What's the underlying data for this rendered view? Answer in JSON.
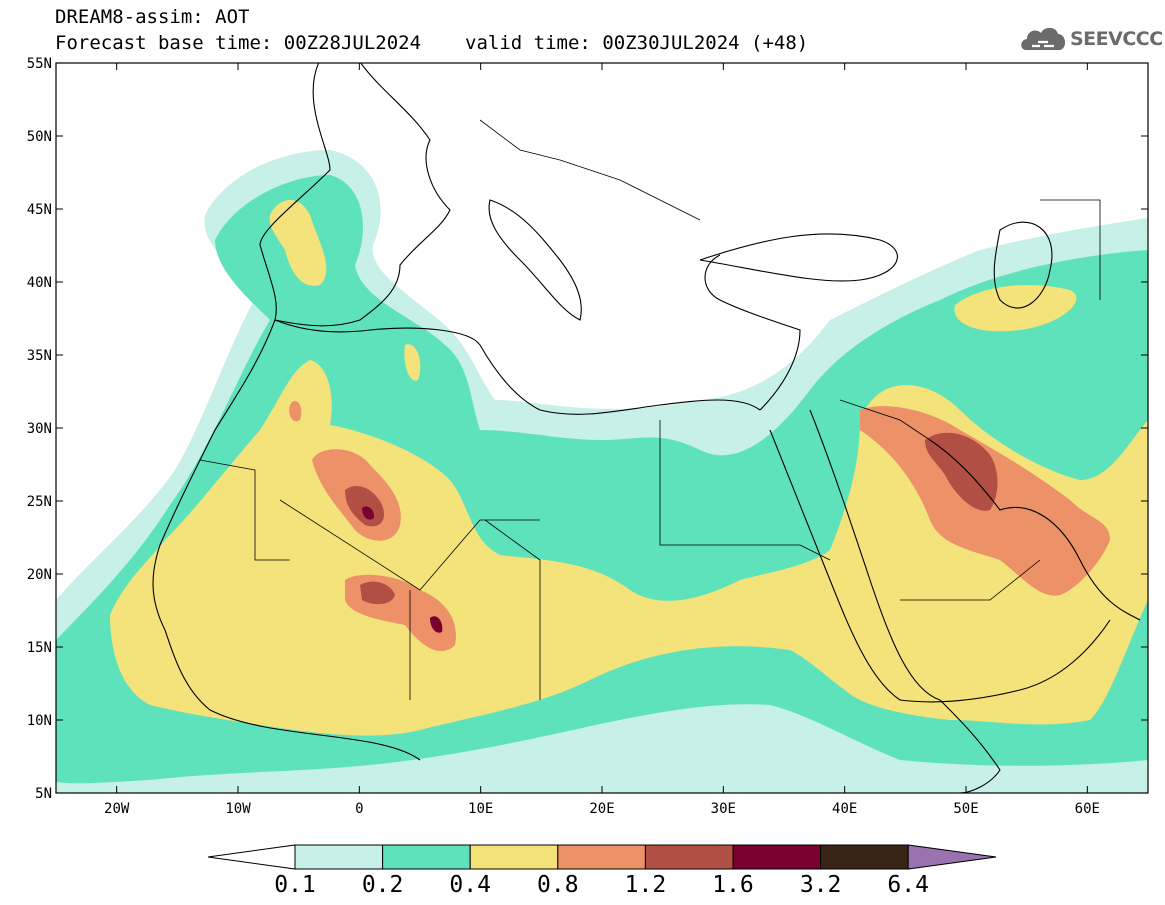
{
  "header": {
    "line1": "DREAM8-assim: AOT",
    "base_time": "Forecast base time: 00Z28JUL2024",
    "valid_time": "valid time: 00Z30JUL2024 (+48)"
  },
  "logo": {
    "text": "SEEVCCC",
    "icon": "cloud-icon",
    "color": "#6b6b6b"
  },
  "map": {
    "lon_range": [
      -25,
      65
    ],
    "lat_range": [
      5,
      55
    ],
    "lat_ticks": [
      {
        "value": 55,
        "label": "55N"
      },
      {
        "value": 50,
        "label": "50N"
      },
      {
        "value": 45,
        "label": "45N"
      },
      {
        "value": 40,
        "label": "40N"
      },
      {
        "value": 35,
        "label": "35N"
      },
      {
        "value": 30,
        "label": "30N"
      },
      {
        "value": 25,
        "label": "25N"
      },
      {
        "value": 20,
        "label": "20N"
      },
      {
        "value": 15,
        "label": "15N"
      },
      {
        "value": 10,
        "label": "10N"
      },
      {
        "value": 5,
        "label": "5N"
      }
    ],
    "lon_ticks": [
      {
        "value": -20,
        "label": "20W"
      },
      {
        "value": -10,
        "label": "10W"
      },
      {
        "value": 0,
        "label": "0"
      },
      {
        "value": 10,
        "label": "10E"
      },
      {
        "value": 20,
        "label": "20E"
      },
      {
        "value": 30,
        "label": "30E"
      },
      {
        "value": 40,
        "label": "40E"
      },
      {
        "value": 50,
        "label": "50E"
      },
      {
        "value": 60,
        "label": "60E"
      }
    ]
  },
  "colorbar": {
    "thresholds": [
      "0.1",
      "0.2",
      "0.4",
      "0.8",
      "1.2",
      "1.6",
      "3.2",
      "6.4"
    ],
    "colors": [
      "#c6f0e8",
      "#5de2bb",
      "#f4e27a",
      "#ec9168",
      "#b24f44",
      "#7a0030",
      "#3a2416",
      "#9b72b0"
    ],
    "under_color": "#ffffff"
  }
}
